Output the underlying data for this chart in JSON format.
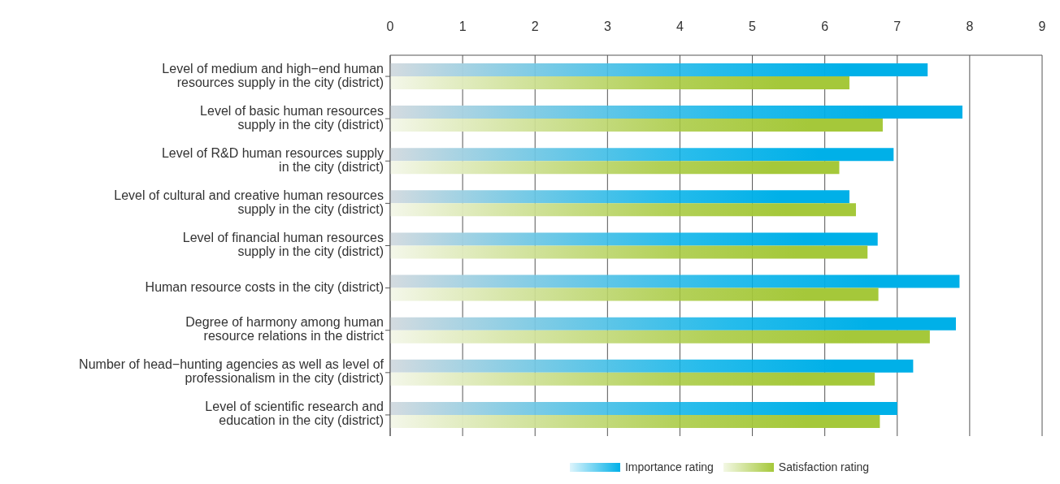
{
  "chart_data": {
    "type": "bar",
    "orientation": "horizontal",
    "categories": [
      "Level of medium and high−end human\nresources supply in the city (district)",
      "Level of basic human resources\nsupply in the city (district)",
      "Level of R&D human resources supply\nin the city (district)",
      "Level of cultural and creative human resources\nsupply in the city (district)",
      "Level of financial human resources\nsupply in the city (district)",
      "Human resource costs in the city (district)",
      "Degree of harmony among human\nresource relations in the district",
      "Number of head−hunting agencies as well as level of\nprofessionalism in the city (district)",
      "Level of scientific research and\neducation in the city (district)"
    ],
    "series": [
      {
        "name": "Importance rating",
        "color": "#00b0e8",
        "values": [
          7.42,
          7.9,
          6.95,
          6.34,
          6.73,
          7.86,
          7.81,
          7.22,
          7.0
        ]
      },
      {
        "name": "Satisfaction rating",
        "color": "#a5c83a",
        "values": [
          6.34,
          6.8,
          6.2,
          6.43,
          6.59,
          6.74,
          7.45,
          6.69,
          6.76
        ]
      }
    ],
    "xlim": [
      0,
      9
    ],
    "xticks": [
      0,
      1,
      2,
      3,
      4,
      5,
      6,
      7,
      8,
      9
    ],
    "grid": "x",
    "legend": "bottom"
  }
}
